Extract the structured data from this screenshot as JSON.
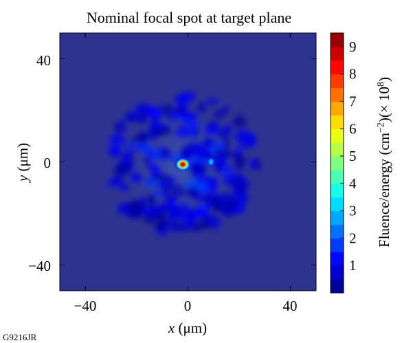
{
  "chart_data": {
    "type": "heatmap",
    "title": "Nominal focal spot at target plane",
    "xlabel": {
      "var": "x",
      "unit": " (μm)"
    },
    "ylabel": {
      "var": "y",
      "unit": " (μm)"
    },
    "xlim": [
      -50,
      50
    ],
    "ylim": [
      -50,
      50
    ],
    "x_ticks": [
      "−40",
      "0",
      "40"
    ],
    "y_ticks": [
      "40",
      "0",
      "−40"
    ],
    "x_tick_values": [
      -40,
      0,
      40
    ],
    "y_tick_values": [
      40,
      0,
      -40
    ],
    "grid": false,
    "colorbar": {
      "label_main": "Fluence/energy (cm",
      "label_exp1": "−2",
      "label_mid": ")(× 10",
      "label_exp2": "8",
      "label_end": ")",
      "range": [
        0,
        9.5
      ],
      "ticks": [
        "1",
        "2",
        "3",
        "4",
        "5",
        "6",
        "7",
        "8",
        "9"
      ],
      "tick_values": [
        1,
        2,
        3,
        4,
        5,
        6,
        7,
        8,
        9
      ],
      "colormap": "jet"
    },
    "peak": {
      "x": -2,
      "y": -1,
      "value": 9.5
    },
    "secondary_peak": {
      "x": 9,
      "y": 0,
      "value": 3.5
    },
    "speckle_halo_extent": [
      -30,
      30
    ]
  },
  "figure_id": "G9216JR",
  "colors": {
    "background_low": "#2d3390",
    "peak": "#8b0000"
  }
}
